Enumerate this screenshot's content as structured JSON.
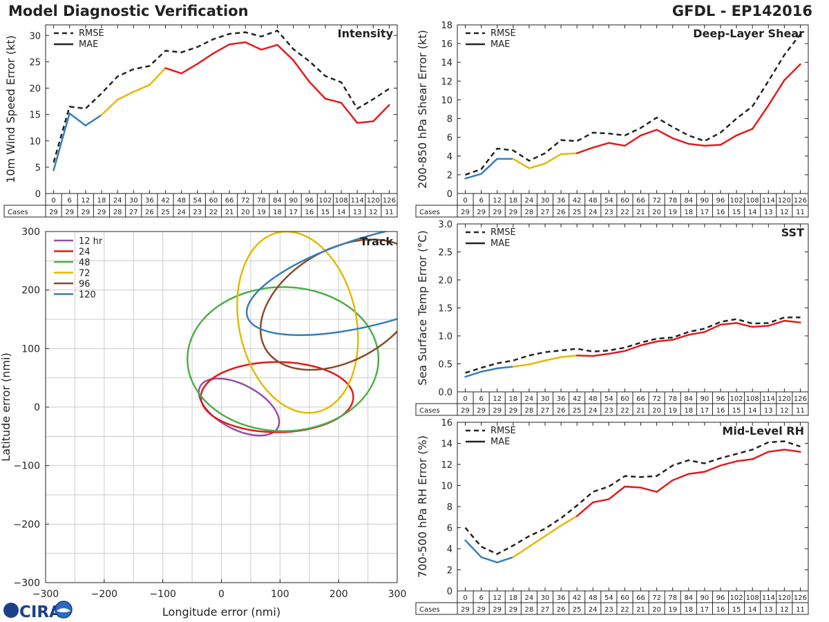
{
  "header": {
    "title": "Model Diagnostic Verification",
    "model_storm": "GFDL - EP142016"
  },
  "logo": {
    "text": "CIRA"
  },
  "colors": {
    "blue": "#377eb8",
    "yellow": "#e6b800",
    "red": "#e41a1c",
    "purple": "#984ea3",
    "green": "#4daf4a",
    "brown": "#8b4a26",
    "black": "#222222",
    "grid": "#cccccc"
  },
  "table": {
    "cases_label": "Cases",
    "hours": [
      "0",
      "6",
      "12",
      "18",
      "24",
      "30",
      "36",
      "42",
      "48",
      "54",
      "60",
      "66",
      "72",
      "78",
      "84",
      "90",
      "96",
      "102",
      "108",
      "114",
      "120",
      "126"
    ],
    "cases": [
      "29",
      "29",
      "29",
      "29",
      "28",
      "27",
      "26",
      "25",
      "24",
      "23",
      "22",
      "21",
      "20",
      "19",
      "18",
      "17",
      "16",
      "15",
      "14",
      "13",
      "12",
      "11"
    ]
  },
  "chart_data": [
    {
      "id": "intensity",
      "type": "line",
      "title": "Intensity",
      "xlabel": "",
      "ylabel": "10m Wind Speed Error (kt)",
      "ylim": [
        0,
        32
      ],
      "yticks": [
        0,
        5,
        10,
        15,
        20,
        25,
        30
      ],
      "legend": [
        "RMSE",
        "MAE"
      ],
      "x": [
        0,
        6,
        12,
        18,
        24,
        30,
        36,
        42,
        48,
        54,
        60,
        66,
        72,
        78,
        84,
        90,
        96,
        102,
        108,
        114,
        120,
        126
      ],
      "series": [
        {
          "name": "RMSE",
          "style": "dashed",
          "values": [
            5.9,
            16.5,
            16.1,
            19.0,
            22.2,
            23.6,
            24.2,
            27.1,
            26.8,
            27.8,
            29.3,
            30.3,
            30.6,
            29.8,
            30.9,
            27.4,
            25.1,
            22.3,
            21.1,
            16.1,
            17.9,
            19.9
          ]
        },
        {
          "name": "MAE",
          "style": "solid",
          "values": [
            4.4,
            15.2,
            12.9,
            14.9,
            17.8,
            19.3,
            20.6,
            23.8,
            22.8,
            24.6,
            26.6,
            28.3,
            28.7,
            27.3,
            28.2,
            25.3,
            21.2,
            18.0,
            17.2,
            13.4,
            13.7,
            16.8
          ]
        }
      ]
    },
    {
      "id": "shear",
      "type": "line",
      "title": "Deep-Layer Shear",
      "xlabel": "",
      "ylabel": "200-850 hPa Shear Error (kt)",
      "ylim": [
        0,
        18
      ],
      "yticks": [
        0,
        2,
        4,
        6,
        8,
        10,
        12,
        14,
        16,
        18
      ],
      "legend": [
        "RMSE",
        "MAE"
      ],
      "x": [
        0,
        6,
        12,
        18,
        24,
        30,
        36,
        42,
        48,
        54,
        60,
        66,
        72,
        78,
        84,
        90,
        96,
        102,
        108,
        114,
        120,
        126
      ],
      "series": [
        {
          "name": "RMSE",
          "style": "dashed",
          "values": [
            2.0,
            2.6,
            4.8,
            4.6,
            3.5,
            4.3,
            5.7,
            5.6,
            6.5,
            6.4,
            6.2,
            7.0,
            8.1,
            7.1,
            6.2,
            5.6,
            6.5,
            8.0,
            9.3,
            12.0,
            14.8,
            17.0
          ]
        },
        {
          "name": "MAE",
          "style": "solid",
          "values": [
            1.6,
            2.1,
            3.7,
            3.7,
            2.7,
            3.2,
            4.2,
            4.3,
            4.9,
            5.4,
            5.1,
            6.2,
            6.8,
            5.9,
            5.3,
            5.1,
            5.2,
            6.2,
            6.9,
            9.4,
            12.1,
            13.8
          ]
        }
      ]
    },
    {
      "id": "sst",
      "type": "line",
      "title": "SST",
      "xlabel": "",
      "ylabel": "Sea Surface Temp Error (°C)",
      "ylim": [
        0,
        3.0
      ],
      "yticks": [
        0.0,
        0.5,
        1.0,
        1.5,
        2.0,
        2.5,
        3.0
      ],
      "legend": [
        "RMSE",
        "MAE"
      ],
      "x": [
        0,
        6,
        12,
        18,
        24,
        30,
        36,
        42,
        48,
        54,
        60,
        66,
        72,
        78,
        84,
        90,
        96,
        102,
        108,
        114,
        120,
        126
      ],
      "series": [
        {
          "name": "RMSE",
          "style": "dashed",
          "values": [
            0.34,
            0.43,
            0.51,
            0.56,
            0.65,
            0.71,
            0.74,
            0.77,
            0.72,
            0.74,
            0.79,
            0.88,
            0.95,
            0.97,
            1.07,
            1.13,
            1.25,
            1.3,
            1.22,
            1.23,
            1.33,
            1.33
          ]
        },
        {
          "name": "MAE",
          "style": "solid",
          "values": [
            0.27,
            0.36,
            0.42,
            0.45,
            0.49,
            0.56,
            0.62,
            0.65,
            0.64,
            0.68,
            0.73,
            0.83,
            0.9,
            0.93,
            1.02,
            1.07,
            1.2,
            1.23,
            1.16,
            1.18,
            1.27,
            1.24
          ]
        }
      ]
    },
    {
      "id": "rh",
      "type": "line",
      "title": "Mid-Level RH",
      "xlabel": "",
      "ylabel": "700-500 hPa RH Error (%)",
      "ylim": [
        0,
        16
      ],
      "yticks": [
        0,
        2,
        4,
        6,
        8,
        10,
        12,
        14,
        16
      ],
      "legend": [
        "RMSE",
        "MAE"
      ],
      "x": [
        0,
        6,
        12,
        18,
        24,
        30,
        36,
        42,
        48,
        54,
        60,
        66,
        72,
        78,
        84,
        90,
        96,
        102,
        108,
        114,
        120,
        126
      ],
      "series": [
        {
          "name": "RMSE",
          "style": "dashed",
          "values": [
            6.0,
            4.2,
            3.5,
            4.3,
            5.2,
            5.9,
            6.9,
            8.1,
            9.4,
            9.9,
            10.9,
            10.8,
            10.9,
            11.9,
            12.4,
            12.1,
            12.6,
            13.0,
            13.4,
            14.1,
            14.2,
            13.7
          ]
        },
        {
          "name": "MAE",
          "style": "solid",
          "values": [
            4.8,
            3.2,
            2.7,
            3.2,
            4.2,
            5.2,
            6.2,
            7.1,
            8.4,
            8.7,
            9.9,
            9.8,
            9.4,
            10.5,
            11.1,
            11.3,
            11.9,
            12.3,
            12.5,
            13.2,
            13.4,
            13.2
          ]
        }
      ]
    },
    {
      "id": "track",
      "type": "ellipse",
      "title": "Track",
      "xlabel": "Longitude error (nmi)",
      "ylabel": "Latitude error (nmi)",
      "xlim": [
        -300,
        300
      ],
      "ylim": [
        -300,
        300
      ],
      "xticks": [
        -300,
        -200,
        -100,
        0,
        100,
        200,
        300
      ],
      "yticks": [
        -300,
        -200,
        -100,
        0,
        100,
        200,
        300
      ],
      "xtick_labels": [
        "−300",
        "−200",
        "−100",
        "0",
        "100",
        "200",
        "300"
      ],
      "ytick_labels": [
        "−300",
        "−200",
        "−100",
        "0",
        "100",
        "200",
        "300"
      ],
      "ellipses": [
        {
          "name": "12 hr",
          "color_key": "purple",
          "cx": 30,
          "cy": 0,
          "rx": 75,
          "ry": 38,
          "rot_deg": 28
        },
        {
          "name": "24",
          "color_key": "red",
          "cx": 95,
          "cy": 17,
          "rx": 130,
          "ry": 60,
          "rot_deg": 0
        },
        {
          "name": "48",
          "color_key": "green",
          "cx": 105,
          "cy": 82,
          "rx": 163,
          "ry": 123,
          "rot_deg": 0
        },
        {
          "name": "72",
          "color_key": "yellow",
          "cx": 130,
          "cy": 145,
          "rx": 100,
          "ry": 157,
          "rot_deg": -12
        },
        {
          "name": "96",
          "color_key": "brown",
          "cx": 205,
          "cy": 175,
          "rx": 150,
          "ry": 95,
          "rot_deg": -30
        },
        {
          "name": "120",
          "color_key": "blue",
          "cx": 270,
          "cy": 220,
          "rx": 235,
          "ry": 75,
          "rot_deg": -16
        }
      ]
    }
  ]
}
